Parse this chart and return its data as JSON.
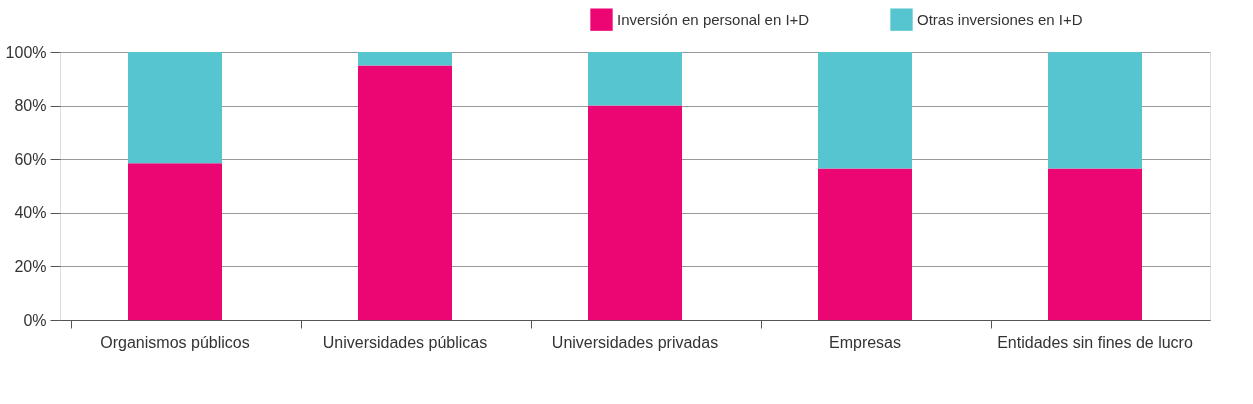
{
  "chart_data": {
    "type": "bar",
    "stacked": true,
    "categories": [
      "Organismos públicos",
      "Universidades públicas",
      "Universidades privadas",
      "Empresas",
      "Entidades sin fines de lucro"
    ],
    "series": [
      {
        "name": "Inversión en personal en I+D",
        "color": "#ec0673",
        "values": [
          58.5,
          95,
          80,
          56.5,
          56.5
        ]
      },
      {
        "name": "Otras inversiones en  I+D",
        "color": "#56c5d0",
        "values": [
          41.5,
          5,
          20,
          43.5,
          43.5
        ]
      }
    ],
    "ylim": [
      0,
      100
    ],
    "yticks": [
      {
        "value": 0,
        "label": "0%"
      },
      {
        "value": 20,
        "label": "20%"
      },
      {
        "value": 40,
        "label": "40%"
      },
      {
        "value": 60,
        "label": "60%"
      },
      {
        "value": 80,
        "label": "80%"
      },
      {
        "value": 100,
        "label": "100%"
      }
    ],
    "grid": "y",
    "legend": "top right"
  }
}
